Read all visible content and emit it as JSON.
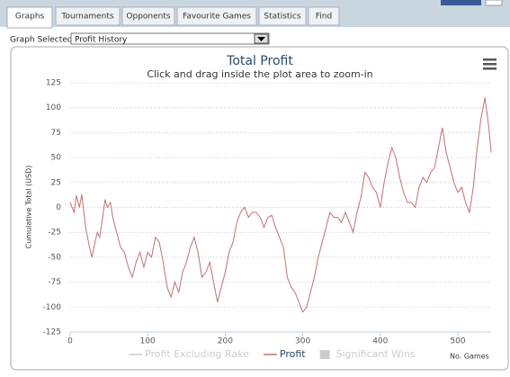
{
  "tabs": [
    "Graphs",
    "Tournaments",
    "Opponents",
    "Favourite Games",
    "Statistics",
    "Find"
  ],
  "selected_tab": 0,
  "graph_selector": {
    "label": "Graph Selected:",
    "value": "Profit History"
  },
  "chart_data": {
    "type": "line",
    "title": "Total Profit",
    "subtitle": "Click and drag inside the plot area to zoom-in",
    "y_label": "Cumulative Total (USD)",
    "x_label": "No. Games",
    "x": [
      0,
      5,
      8,
      12,
      15,
      20,
      25,
      28,
      32,
      35,
      38,
      42,
      45,
      48,
      52,
      55,
      60,
      65,
      70,
      75,
      80,
      85,
      90,
      95,
      100,
      105,
      110,
      115,
      120,
      125,
      130,
      135,
      140,
      145,
      150,
      155,
      160,
      165,
      170,
      175,
      180,
      185,
      190,
      195,
      200,
      205,
      210,
      215,
      220,
      225,
      230,
      235,
      240,
      245,
      250,
      255,
      260,
      265,
      270,
      275,
      280,
      285,
      290,
      295,
      300,
      305,
      310,
      315,
      320,
      325,
      330,
      335,
      340,
      345,
      350,
      355,
      360,
      365,
      370,
      375,
      380,
      385,
      390,
      395,
      400,
      405,
      410,
      415,
      420,
      425,
      430,
      435,
      440,
      445,
      450,
      455,
      460,
      465,
      470,
      475,
      480,
      485,
      490,
      495,
      500,
      505,
      510,
      515,
      520,
      525,
      530,
      535,
      540,
      543
    ],
    "series": [
      {
        "name": "Profit Excluding Rake",
        "color": "#cccccc",
        "hidden": true
      },
      {
        "name": "Profit",
        "color": "#c07070",
        "values": [
          5,
          -5,
          12,
          0,
          13,
          -20,
          -40,
          -50,
          -35,
          -25,
          -30,
          -10,
          8,
          0,
          5,
          -10,
          -25,
          -40,
          -45,
          -60,
          -70,
          -55,
          -45,
          -60,
          -45,
          -50,
          -30,
          -35,
          -55,
          -80,
          -90,
          -75,
          -85,
          -65,
          -55,
          -40,
          -30,
          -45,
          -70,
          -65,
          -55,
          -75,
          -95,
          -80,
          -65,
          -45,
          -35,
          -15,
          -5,
          0,
          -10,
          -5,
          -5,
          -10,
          -20,
          -10,
          -8,
          -20,
          -30,
          -40,
          -70,
          -80,
          -85,
          -95,
          -105,
          -100,
          -85,
          -70,
          -50,
          -35,
          -20,
          -5,
          -10,
          -10,
          -15,
          -5,
          -15,
          -25,
          -5,
          10,
          35,
          30,
          20,
          15,
          0,
          25,
          45,
          60,
          50,
          30,
          15,
          5,
          5,
          0,
          20,
          30,
          25,
          35,
          40,
          60,
          80,
          55,
          40,
          25,
          15,
          20,
          5,
          -5,
          20,
          60,
          90,
          110,
          80,
          55
        ]
      },
      {
        "name": "Significant Wins",
        "color": "#cccccc",
        "hidden": true,
        "symbol": "box"
      }
    ],
    "xlim": [
      0,
      543
    ],
    "ylim": [
      -125,
      125
    ],
    "xticks": [
      0,
      100,
      200,
      300,
      400,
      500
    ],
    "yticks": [
      -125,
      -100,
      -75,
      -50,
      -25,
      0,
      25,
      50,
      75,
      100,
      125
    ],
    "grid": true
  }
}
